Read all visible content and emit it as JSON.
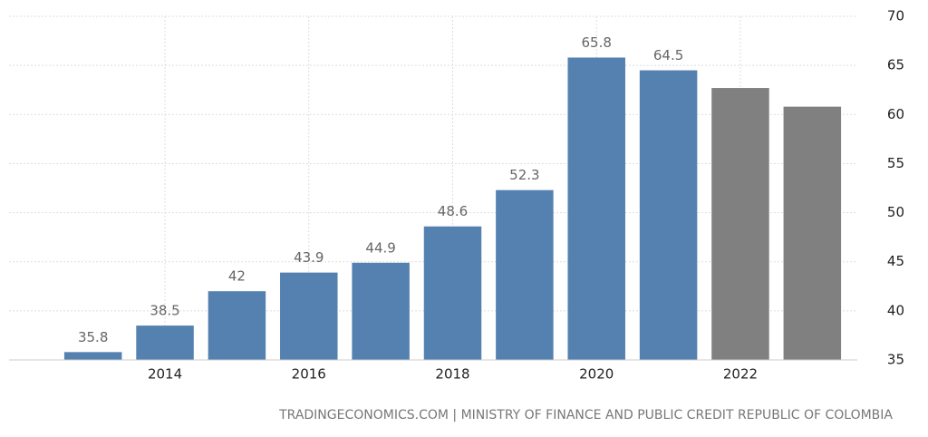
{
  "chart_data": {
    "type": "bar",
    "source": "TRADINGECONOMICS.COM | MINISTRY OF FINANCE AND PUBLIC CREDIT REPUBLIC OF COLOMBIA",
    "categories": [
      null,
      "2014",
      null,
      "2016",
      null,
      "2018",
      null,
      "2020",
      null,
      "2022",
      null
    ],
    "series": [
      {
        "color": "#5581b0",
        "data_labels": true,
        "values": [
          35.8,
          38.5,
          42,
          43.9,
          44.9,
          48.6,
          52.3,
          65.8,
          64.5,
          null,
          null
        ]
      },
      {
        "color": "#808080",
        "data_labels": false,
        "values": [
          null,
          null,
          null,
          null,
          null,
          null,
          null,
          null,
          null,
          62.7,
          60.8
        ]
      }
    ],
    "ylim": [
      35,
      70
    ],
    "yticks": [
      35,
      40,
      45,
      50,
      55,
      60,
      65,
      70
    ],
    "grid": true,
    "y_axis_side": "right"
  }
}
